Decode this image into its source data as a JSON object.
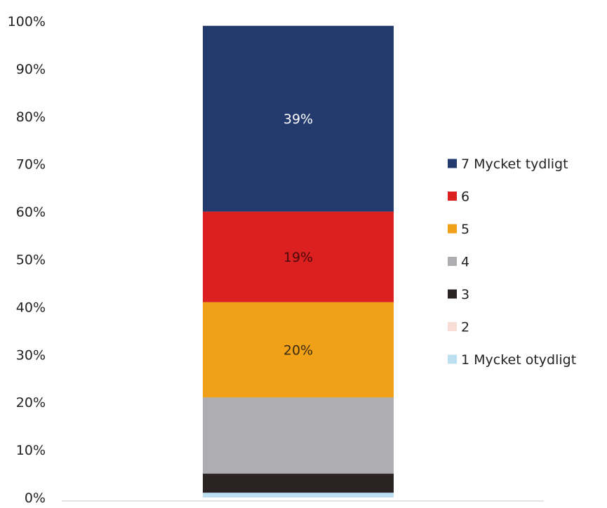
{
  "chart_data": {
    "type": "bar",
    "stacked": true,
    "categories": [
      ""
    ],
    "ylim": [
      0,
      100
    ],
    "y_ticks": [
      0,
      10,
      20,
      30,
      40,
      50,
      60,
      70,
      80,
      90,
      100
    ],
    "y_tick_labels": [
      "0%",
      "10%",
      "20%",
      "30%",
      "40%",
      "50%",
      "60%",
      "70%",
      "80%",
      "90%",
      "100%"
    ],
    "grid": false,
    "legend_position": "right",
    "series": [
      {
        "name": "1 Mycket otydligt",
        "values": [
          1
        ],
        "color": "#bcdff2",
        "label": ""
      },
      {
        "name": "2",
        "values": [
          0
        ],
        "color": "#f7ddd6",
        "label": ""
      },
      {
        "name": "3",
        "values": [
          4
        ],
        "color": "#2b2224",
        "label": ""
      },
      {
        "name": "4",
        "values": [
          16
        ],
        "color": "#aeadb2",
        "label": ""
      },
      {
        "name": "5",
        "values": [
          20
        ],
        "color": "#f0a118",
        "label": "20%"
      },
      {
        "name": "6",
        "values": [
          19
        ],
        "color": "#dc1f1f",
        "label": "19%"
      },
      {
        "name": "7 Mycket tydligt",
        "values": [
          39
        ],
        "color": "#233a6e",
        "label": "39%"
      }
    ],
    "label_colors": {
      "5": "#3a2a10",
      "6": "#4a0a0a",
      "7 Mycket tydligt": "#ffffff"
    }
  }
}
